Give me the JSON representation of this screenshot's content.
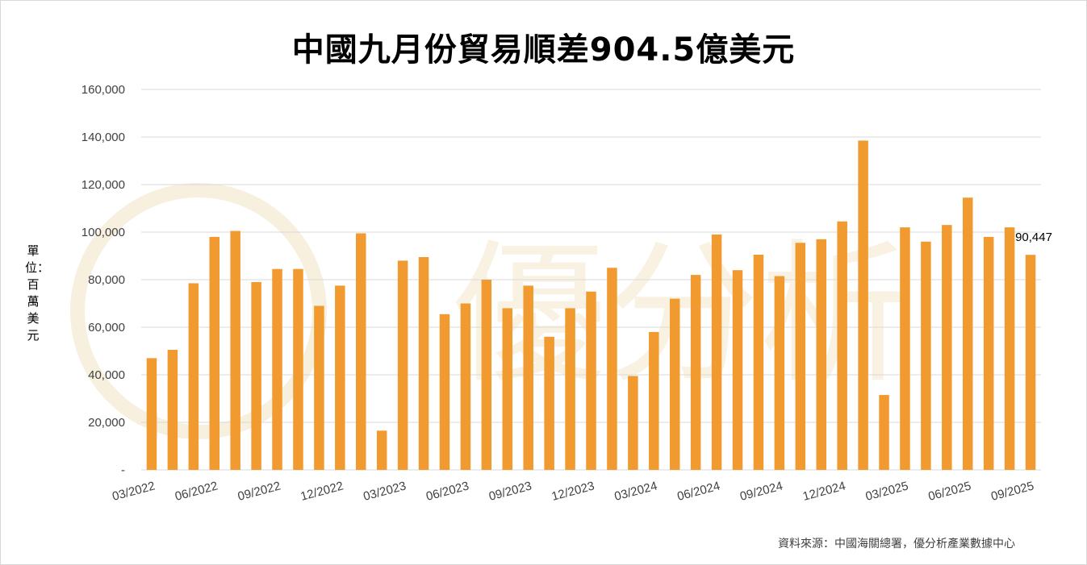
{
  "header": {
    "title": "中國九月份貿易順差904.5億美元"
  },
  "watermark": {
    "text": "優分析"
  },
  "footer": {
    "source": "資料來源：中國海關總署，優分析產業數據中心"
  },
  "colors": {
    "bar": "#F09A2F",
    "grid": "#d9d9d9",
    "watermark": "#f3e3c3"
  },
  "chart_data": {
    "type": "bar",
    "title": "中國九月份貿易順差904.5億美元",
    "ylabel": "單位：百萬美元",
    "xlabel": "",
    "ylim": [
      0,
      160000
    ],
    "grid": true,
    "y_ticks": [
      0,
      20000,
      40000,
      60000,
      80000,
      100000,
      120000,
      140000,
      160000
    ],
    "y_tick_labels": [
      "-",
      "20,000",
      "40,000",
      "60,000",
      "80,000",
      "100,000",
      "120,000",
      "140,000",
      "160,000"
    ],
    "x_tick_labels": [
      "03/2022",
      "06/2022",
      "09/2022",
      "12/2022",
      "03/2023",
      "06/2023",
      "09/2023",
      "12/2023",
      "03/2024",
      "06/2024",
      "09/2024",
      "12/2024",
      "03/2025",
      "06/2025",
      "09/2025"
    ],
    "categories": [
      "03/2022",
      "04/2022",
      "05/2022",
      "06/2022",
      "07/2022",
      "08/2022",
      "09/2022",
      "10/2022",
      "11/2022",
      "12/2022",
      "01/2023",
      "02/2023",
      "03/2023",
      "04/2023",
      "05/2023",
      "06/2023",
      "07/2023",
      "08/2023",
      "09/2023",
      "10/2023",
      "11/2023",
      "12/2023",
      "01/2024",
      "02/2024",
      "03/2024",
      "04/2024",
      "05/2024",
      "06/2024",
      "07/2024",
      "08/2024",
      "09/2024",
      "10/2024",
      "11/2024",
      "12/2024",
      "01/2025",
      "02/2025",
      "03/2025",
      "04/2025",
      "05/2025",
      "06/2025",
      "07/2025",
      "08/2025",
      "09/2025"
    ],
    "values": [
      47000,
      50500,
      78500,
      98000,
      100500,
      79000,
      84500,
      84500,
      69000,
      77500,
      99500,
      16500,
      88000,
      89500,
      65500,
      70000,
      80000,
      68000,
      77500,
      56000,
      68000,
      75000,
      85000,
      39500,
      58000,
      72000,
      82000,
      99000,
      84000,
      90500,
      81500,
      95500,
      97000,
      104500,
      138500,
      31500,
      102000,
      96000,
      103000,
      114500,
      98000,
      102000,
      90447
    ],
    "annotations": [
      {
        "category": "09/2025",
        "text": "90,447"
      }
    ]
  }
}
